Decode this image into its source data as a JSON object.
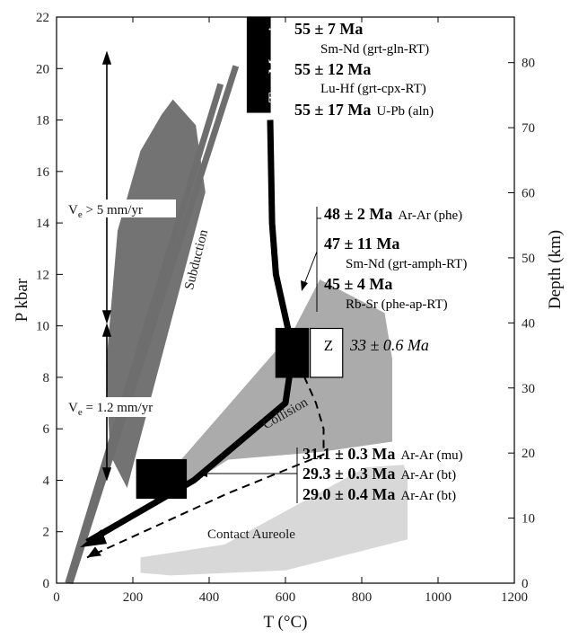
{
  "chart_data": {
    "type": "line",
    "xlabel": "T (°C)",
    "ylabel": "P kbar",
    "y2label": "Depth (km)",
    "xlim": [
      0,
      1200
    ],
    "ylim": [
      0,
      22
    ],
    "y2lim": [
      0,
      87
    ],
    "xticks": [
      0,
      200,
      400,
      600,
      800,
      1000,
      1200
    ],
    "yticks": [
      0,
      2,
      4,
      6,
      8,
      10,
      12,
      14,
      16,
      18,
      20,
      22
    ],
    "y2ticks": [
      0,
      10,
      20,
      30,
      40,
      50,
      60,
      70,
      80
    ],
    "colors": {
      "subduction": "#737373",
      "collision": "#ababab",
      "contact_aureole": "#d8d8d8",
      "geotherm": "#6e6e6e",
      "path": "#000000"
    },
    "regions": [
      {
        "name": "subduction",
        "label": "Subduction",
        "polygon": [
          [
            185,
            3.7
          ],
          [
            390,
            15.2
          ],
          [
            365,
            17.8
          ],
          [
            305,
            18.8
          ],
          [
            275,
            18.2
          ],
          [
            220,
            16.8
          ],
          [
            160,
            13.7
          ],
          [
            130,
            8.5
          ],
          [
            140,
            5.0
          ]
        ]
      },
      {
        "name": "collision",
        "label": "Collision",
        "polygon": [
          [
            250,
            3.5
          ],
          [
            620,
            9.8
          ],
          [
            690,
            11.8
          ],
          [
            860,
            10.5
          ],
          [
            880,
            8.7
          ],
          [
            880,
            5.5
          ],
          [
            690,
            5.1
          ],
          [
            450,
            4.8
          ],
          [
            260,
            3.0
          ]
        ]
      },
      {
        "name": "contact-aureole",
        "label": "Contact Aureole",
        "polygon": [
          [
            220,
            1.0
          ],
          [
            440,
            1.5
          ],
          [
            810,
            4.5
          ],
          [
            910,
            4.6
          ],
          [
            920,
            4.2
          ],
          [
            920,
            1.7
          ],
          [
            600,
            0.5
          ],
          [
            300,
            0.3
          ],
          [
            220,
            0.4
          ]
        ]
      }
    ],
    "geotherms": [
      {
        "points": [
          [
            30,
            0
          ],
          [
            430,
            19.4
          ]
        ]
      },
      {
        "points": [
          [
            35,
            0
          ],
          [
            470,
            20.1
          ]
        ]
      }
    ],
    "pt_path": {
      "points": [
        [
          560,
          18.0
        ],
        [
          565,
          14.0
        ],
        [
          575,
          12.0
        ],
        [
          620,
          9.0
        ],
        [
          600,
          7.0
        ],
        [
          360,
          4.0
        ],
        [
          80,
          1.6
        ]
      ]
    },
    "retro_path": {
      "points": [
        [
          620,
          9.0
        ],
        [
          680,
          7.0
        ],
        [
          700,
          6.0
        ],
        [
          700,
          5.0
        ],
        [
          450,
          3.5
        ],
        [
          80,
          1.0
        ]
      ]
    },
    "boxes": [
      {
        "name": "tso-morari-box",
        "label": "Tso Morari",
        "x": [
          500,
          560
        ],
        "y": [
          18.3,
          22
        ]
      },
      {
        "name": "mid-box",
        "label": "",
        "x": [
          575,
          660
        ],
        "y": [
          8.0,
          9.9
        ]
      },
      {
        "name": "z-box",
        "label": "Z",
        "x": [
          665,
          750
        ],
        "y": [
          8.0,
          9.9
        ]
      },
      {
        "name": "low-box",
        "label": "",
        "x": [
          210,
          340
        ],
        "y": [
          3.3,
          4.8
        ]
      }
    ],
    "velocity_labels": [
      "V",
      "e",
      " > 5 mm/yr",
      "V",
      "e",
      " = 1.2 mm/yr"
    ],
    "ages": [
      {
        "age": "55 ± 7 Ma",
        "method": "Sm-Nd (grt-gln-RT)"
      },
      {
        "age": "55 ± 12 Ma",
        "method": "Lu-Hf (grt-cpx-RT)"
      },
      {
        "age": "55 ± 17 Ma",
        "method": "U-Pb (aln)"
      },
      {
        "age": "48 ± 2 Ma",
        "method": "Ar-Ar (phe)"
      },
      {
        "age": "47 ± 11 Ma",
        "method": "Sm-Nd (grt-amph-RT)"
      },
      {
        "age": "45 ± 4 Ma",
        "method": "Rb-Sr (phe-ap-RT)"
      },
      {
        "age": "33 ± 0.6 Ma",
        "method": ""
      },
      {
        "age": "31.1 ± 0.3 Ma",
        "method": "Ar-Ar (mu)"
      },
      {
        "age": "29.3 ± 0.3 Ma",
        "method": "Ar-Ar (bt)"
      },
      {
        "age": "29.0 ± 0.4 Ma",
        "method": "Ar-Ar (bt)"
      }
    ]
  }
}
